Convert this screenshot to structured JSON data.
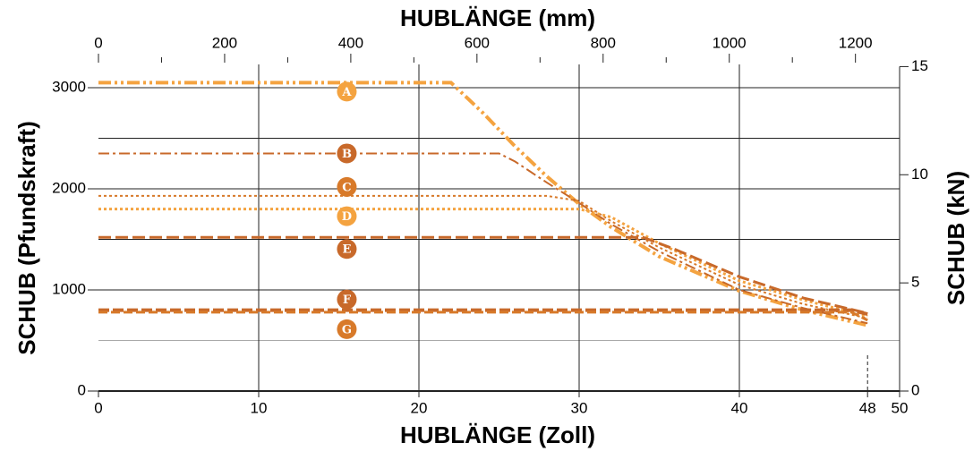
{
  "chart_data": {
    "type": "line",
    "x2label": "HUBLÄNGE (mm)",
    "xlabel": "HUBLÄNGE (Zoll)",
    "ylabel": "SCHUB (Pfundskraft)",
    "y2label": "SCHUB (kN)",
    "xlim": [
      0,
      50
    ],
    "xticks": [
      0,
      10,
      20,
      30,
      40,
      48,
      50
    ],
    "x2lim": [
      0,
      1270
    ],
    "x2ticks": [
      0,
      200,
      400,
      600,
      800,
      1000,
      1200
    ],
    "x2minor_ticks": [
      100,
      300,
      500,
      700,
      900,
      1100
    ],
    "ylim": [
      0,
      3230
    ],
    "yticks": [
      0,
      1000,
      2000,
      3000
    ],
    "ygrid": [
      500,
      1000,
      1500,
      2000,
      2500,
      3000
    ],
    "y2lim": [
      0,
      15.1
    ],
    "y2ticks": [
      0,
      5,
      10,
      15
    ],
    "grid": true,
    "series": [
      {
        "name": "A",
        "color": "#f4a340",
        "x": [
          0,
          22,
          24,
          26,
          28,
          30,
          32,
          35,
          40,
          44,
          48
        ],
        "values": [
          3050,
          3050,
          2750,
          2420,
          2120,
          1850,
          1620,
          1330,
          990,
          800,
          650
        ]
      },
      {
        "name": "B",
        "color": "#c8692a",
        "x": [
          0,
          25,
          26,
          28,
          30,
          32,
          35,
          40,
          44,
          48
        ],
        "values": [
          2350,
          2350,
          2270,
          2060,
          1860,
          1650,
          1380,
          1000,
          820,
          670
        ]
      },
      {
        "name": "C",
        "color": "#d87a2a",
        "x": [
          0,
          28,
          30,
          32,
          35,
          40,
          44,
          48
        ],
        "values": [
          1930,
          1930,
          1880,
          1680,
          1420,
          1050,
          860,
          720
        ]
      },
      {
        "name": "D",
        "color": "#f4a340",
        "x": [
          0,
          30,
          32,
          35,
          40,
          44,
          48
        ],
        "values": [
          1800,
          1800,
          1720,
          1460,
          1090,
          900,
          740
        ]
      },
      {
        "name": "E",
        "color": "#c8692a",
        "x": [
          0,
          34,
          36,
          40,
          44,
          48
        ],
        "values": [
          1520,
          1520,
          1400,
          1130,
          920,
          770
        ]
      },
      {
        "name": "F",
        "color": "#c8692a",
        "x": [
          0,
          47,
          48
        ],
        "values": [
          800,
          800,
          760
        ]
      },
      {
        "name": "G",
        "color": "#d87a2a",
        "x": [
          0,
          47,
          48
        ],
        "values": [
          780,
          780,
          700
        ]
      }
    ]
  }
}
